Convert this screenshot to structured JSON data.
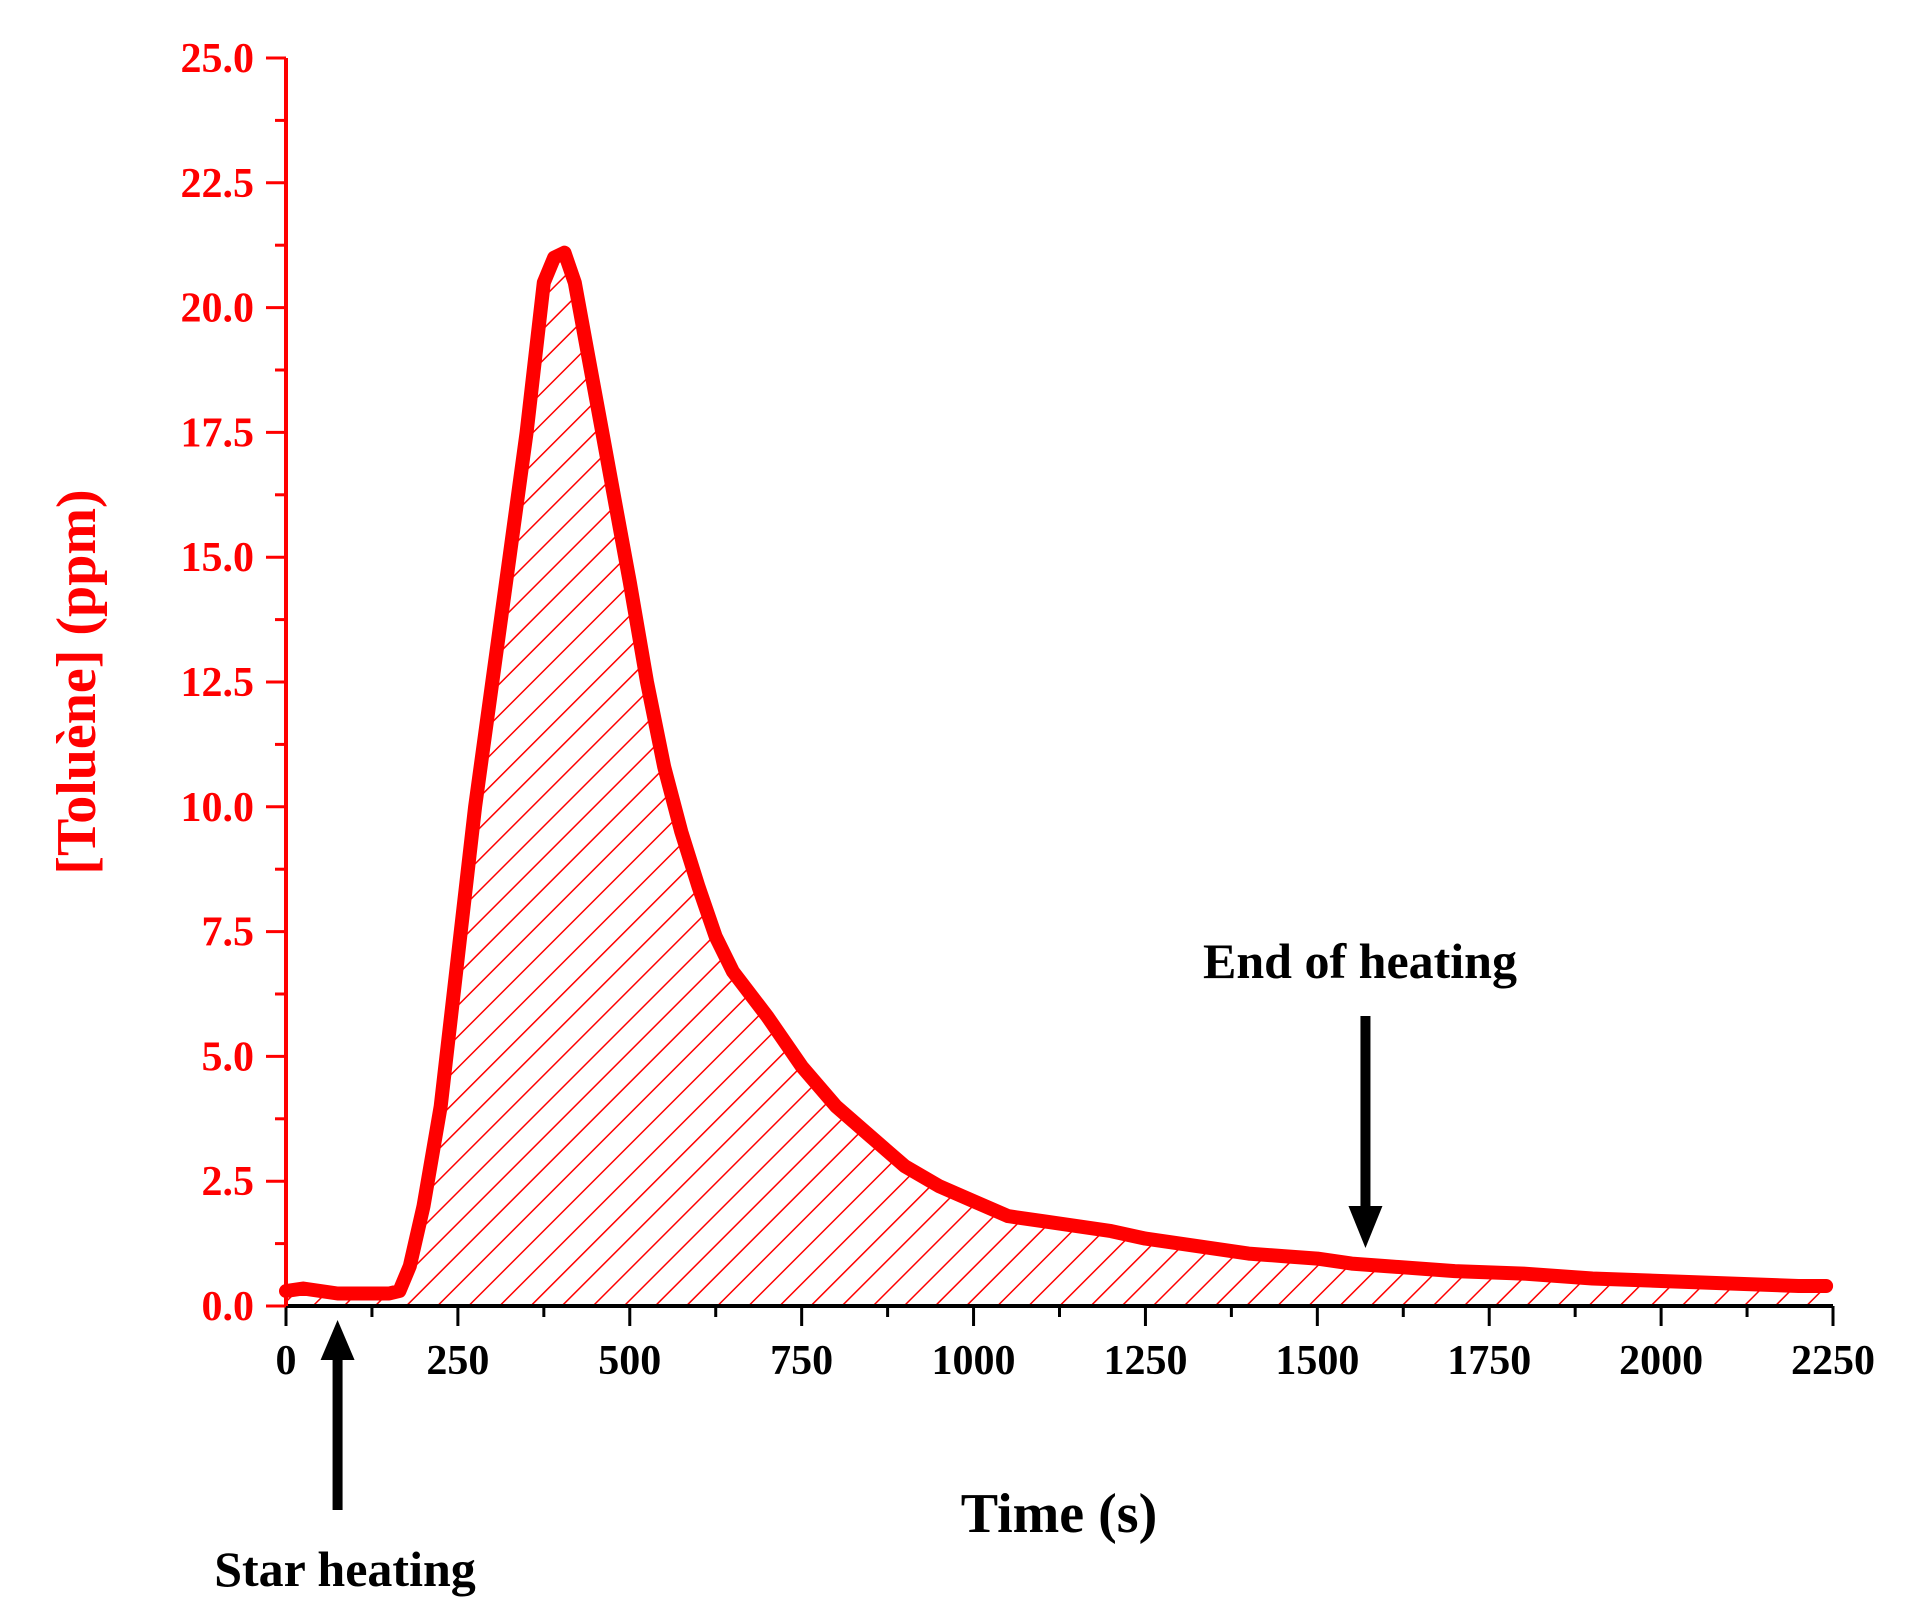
{
  "colors": {
    "series": "#ff0000",
    "axis": "#000000",
    "background": "#ffffff"
  },
  "chart_data": {
    "type": "area",
    "title": "",
    "xlabel": "Time (s)",
    "ylabel": "[Toluène] (ppm)",
    "xlim": [
      0,
      2250
    ],
    "ylim": [
      0,
      25
    ],
    "x_ticks": [
      0,
      250,
      500,
      750,
      1000,
      1250,
      1500,
      1750,
      2000,
      2250
    ],
    "x_tick_labels": [
      "0",
      "250",
      "500",
      "750",
      "1000",
      "1250",
      "1500",
      "1750",
      "2000",
      "2250"
    ],
    "y_ticks": [
      0,
      2.5,
      5,
      7.5,
      10,
      12.5,
      15,
      17.5,
      20,
      22.5,
      25
    ],
    "y_tick_labels": [
      "0.0",
      "2.5",
      "5.0",
      "7.5",
      "10.0",
      "12.5",
      "15.0",
      "17.5",
      "20.0",
      "22.5",
      "25.0"
    ],
    "grid": false,
    "fill": "hatched",
    "series": [
      {
        "name": "[Toluène] (ppm)",
        "x": [
          0,
          25,
          50,
          75,
          100,
          125,
          150,
          165,
          180,
          200,
          225,
          250,
          275,
          300,
          325,
          350,
          375,
          390,
          405,
          420,
          440,
          460,
          480,
          500,
          525,
          550,
          575,
          600,
          625,
          650,
          700,
          750,
          800,
          850,
          900,
          950,
          1000,
          1050,
          1100,
          1150,
          1200,
          1250,
          1300,
          1350,
          1400,
          1450,
          1500,
          1550,
          1600,
          1700,
          1800,
          1900,
          2000,
          2100,
          2200,
          2240
        ],
        "y": [
          0.3,
          0.35,
          0.3,
          0.25,
          0.25,
          0.25,
          0.25,
          0.3,
          0.8,
          2.0,
          4.0,
          7.0,
          10.0,
          12.5,
          15.0,
          17.5,
          20.5,
          21.0,
          21.1,
          20.5,
          19.0,
          17.5,
          16.0,
          14.5,
          12.5,
          10.8,
          9.5,
          8.4,
          7.4,
          6.7,
          5.8,
          4.8,
          4.0,
          3.4,
          2.8,
          2.4,
          2.1,
          1.8,
          1.7,
          1.6,
          1.5,
          1.35,
          1.25,
          1.15,
          1.05,
          1.0,
          0.95,
          0.85,
          0.8,
          0.7,
          0.65,
          0.55,
          0.5,
          0.45,
          0.4,
          0.4
        ]
      }
    ],
    "annotations": [
      {
        "text": "Star heating",
        "arrow_x": 75,
        "direction": "up"
      },
      {
        "text": "End of heating",
        "arrow_x": 1570,
        "direction": "down"
      }
    ]
  }
}
